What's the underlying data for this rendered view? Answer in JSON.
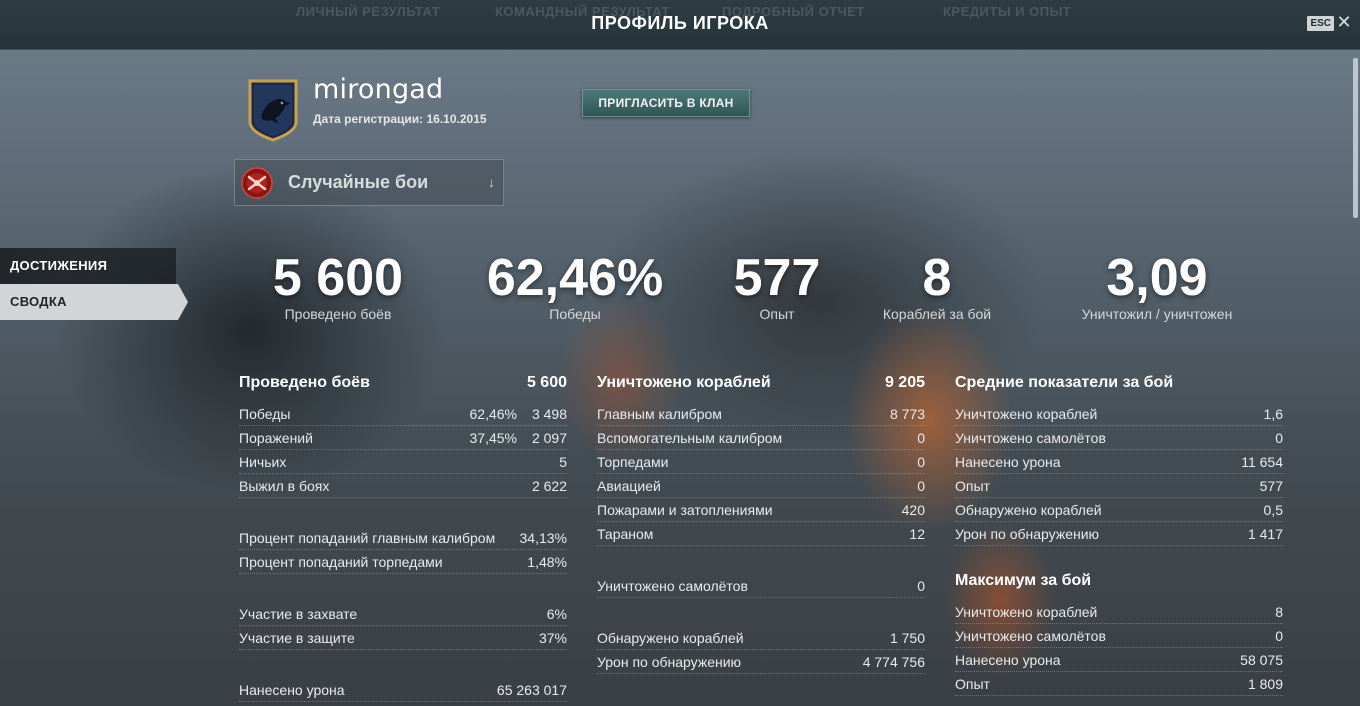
{
  "top_bar": {
    "title": "ПРОФИЛЬ ИГРОКА",
    "esc_label": "ESC",
    "close_glyph": "✕",
    "background_tabs": [
      "ЛИЧНЫЙ РЕЗУЛЬТАТ",
      "КОМАНДНЫЙ РЕЗУЛЬТАТ",
      "ПОДРОБНЫЙ ОТЧЕТ",
      "КРЕДИТЫ И ОПЫТ"
    ]
  },
  "profile": {
    "name": "mirongad",
    "registration": "Дата регистрации: 16.10.2015",
    "invite_button": "ПРИГЛАСИТЬ В КЛАН",
    "emblem_icon": "raven-emblem-icon"
  },
  "mode_select": {
    "value": "Случайные бои",
    "icon": "random-battles-icon",
    "arrow": "↓"
  },
  "nav": {
    "items": [
      {
        "label": "ДОСТИЖЕНИЯ",
        "active": false
      },
      {
        "label": "СВОДКА",
        "active": true
      }
    ]
  },
  "big_stats": [
    {
      "value": "5 600",
      "label": "Проведено боёв"
    },
    {
      "value": "62,46%",
      "label": "Победы"
    },
    {
      "value": "577",
      "label": "Опыт"
    },
    {
      "value": "8",
      "label": "Кораблей за бой"
    },
    {
      "value": "3,09",
      "label": "Уничтожил / уничтожен"
    }
  ],
  "col1": {
    "title": "Проведено боёв",
    "title_value": "5 600",
    "rows_a": [
      {
        "label": "Победы",
        "pct": "62,46%",
        "value": "3 498"
      },
      {
        "label": "Поражений",
        "pct": "37,45%",
        "value": "2 097"
      },
      {
        "label": "Ничьих",
        "value": "5"
      },
      {
        "label": "Выжил в боях",
        "value": "2 622"
      }
    ],
    "rows_b": [
      {
        "label": "Процент попаданий главным калибром",
        "value": "34,13%"
      },
      {
        "label": "Процент попаданий торпедами",
        "value": "1,48%"
      }
    ],
    "rows_c": [
      {
        "label": "Участие в захвате",
        "value": "6%"
      },
      {
        "label": "Участие в защите",
        "value": "37%"
      }
    ],
    "rows_d": [
      {
        "label": "Нанесено урона",
        "value": "65 263 017"
      }
    ]
  },
  "col2": {
    "title": "Уничтожено кораблей",
    "title_value": "9 205",
    "rows_a": [
      {
        "label": "Главным калибром",
        "value": "8 773"
      },
      {
        "label": "Вспомогательным калибром",
        "value": "0"
      },
      {
        "label": "Торпедами",
        "value": "0"
      },
      {
        "label": "Авиацией",
        "value": "0"
      },
      {
        "label": "Пожарами и затоплениями",
        "value": "420"
      },
      {
        "label": "Тараном",
        "value": "12"
      }
    ],
    "rows_b": [
      {
        "label": "Уничтожено самолётов",
        "value": "0"
      }
    ],
    "rows_c": [
      {
        "label": "Обнаружено кораблей",
        "value": "1 750"
      },
      {
        "label": "Урон по обнаружению",
        "value": "4 774 756"
      }
    ]
  },
  "col3": {
    "title": "Средние показатели за бой",
    "rows_a": [
      {
        "label": "Уничтожено кораблей",
        "value": "1,6"
      },
      {
        "label": "Уничтожено самолётов",
        "value": "0"
      },
      {
        "label": "Нанесено урона",
        "value": "11 654"
      },
      {
        "label": "Опыт",
        "value": "577"
      },
      {
        "label": "Обнаружено кораблей",
        "value": "0,5"
      },
      {
        "label": "Урон по обнаружению",
        "value": "1 417"
      }
    ],
    "title2": "Максимум за бой",
    "rows_b": [
      {
        "label": "Уничтожено кораблей",
        "value": "8"
      },
      {
        "label": "Уничтожено самолётов",
        "value": "0"
      },
      {
        "label": "Нанесено урона",
        "value": "58 075"
      },
      {
        "label": "Опыт",
        "value": "1 809"
      }
    ]
  }
}
